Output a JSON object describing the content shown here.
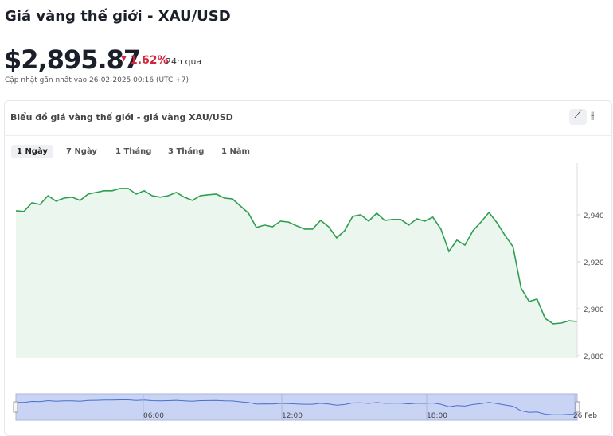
{
  "header": {
    "title": "Giá vàng thế giới - XAU/USD",
    "price": "$2,895.87",
    "change": "1.62%",
    "change_period": "24h qua",
    "updated": "Cập nhật gần nhất vào 26-02-2025 00:16 (UTC +7)"
  },
  "card": {
    "title": "Biểu đồ giá vàng thế giới - giá vàng XAU/USD",
    "tabs": [
      "1 Ngày",
      "7 Ngày",
      "1 Tháng",
      "3 Tháng",
      "1 Năm"
    ]
  },
  "chart_data": {
    "type": "line",
    "color": "#2e9e4f",
    "values": [
      2941.7,
      2941.4,
      2945.1,
      2944.4,
      2948.1,
      2945.8,
      2947.1,
      2947.5,
      2946.1,
      2948.8,
      2949.5,
      2950.2,
      2950.2,
      2951.2,
      2951.2,
      2948.8,
      2950.2,
      2948.1,
      2947.5,
      2948.1,
      2949.5,
      2947.5,
      2946.1,
      2948.1,
      2948.5,
      2948.8,
      2947.1,
      2946.8,
      2943.7,
      2940.7,
      2934.6,
      2935.6,
      2934.9,
      2937.3,
      2936.9,
      2935.3,
      2933.9,
      2933.9,
      2937.6,
      2934.9,
      2930.2,
      2933.2,
      2939.3,
      2940.0,
      2937.3,
      2940.7,
      2937.6,
      2938.0,
      2938.0,
      2935.6,
      2938.3,
      2937.3,
      2939.0,
      2933.9,
      2924.4,
      2929.2,
      2927.1,
      2933.2,
      2936.9,
      2941.0,
      2936.6,
      2931.2,
      2926.4,
      2908.8,
      2903.1,
      2904.1,
      2895.9,
      2893.6,
      2893.9,
      2894.9,
      2894.6
    ],
    "ylim": [
      2879,
      2962
    ],
    "yticks": [
      {
        "value": 2880,
        "label": "2,880"
      },
      {
        "value": 2900,
        "label": "2,900"
      },
      {
        "value": 2920,
        "label": "2,920"
      },
      {
        "value": 2940,
        "label": "2,940"
      }
    ],
    "navigator_labels": [
      "06:00",
      "12:00",
      "18:00",
      "26 Feb"
    ]
  }
}
